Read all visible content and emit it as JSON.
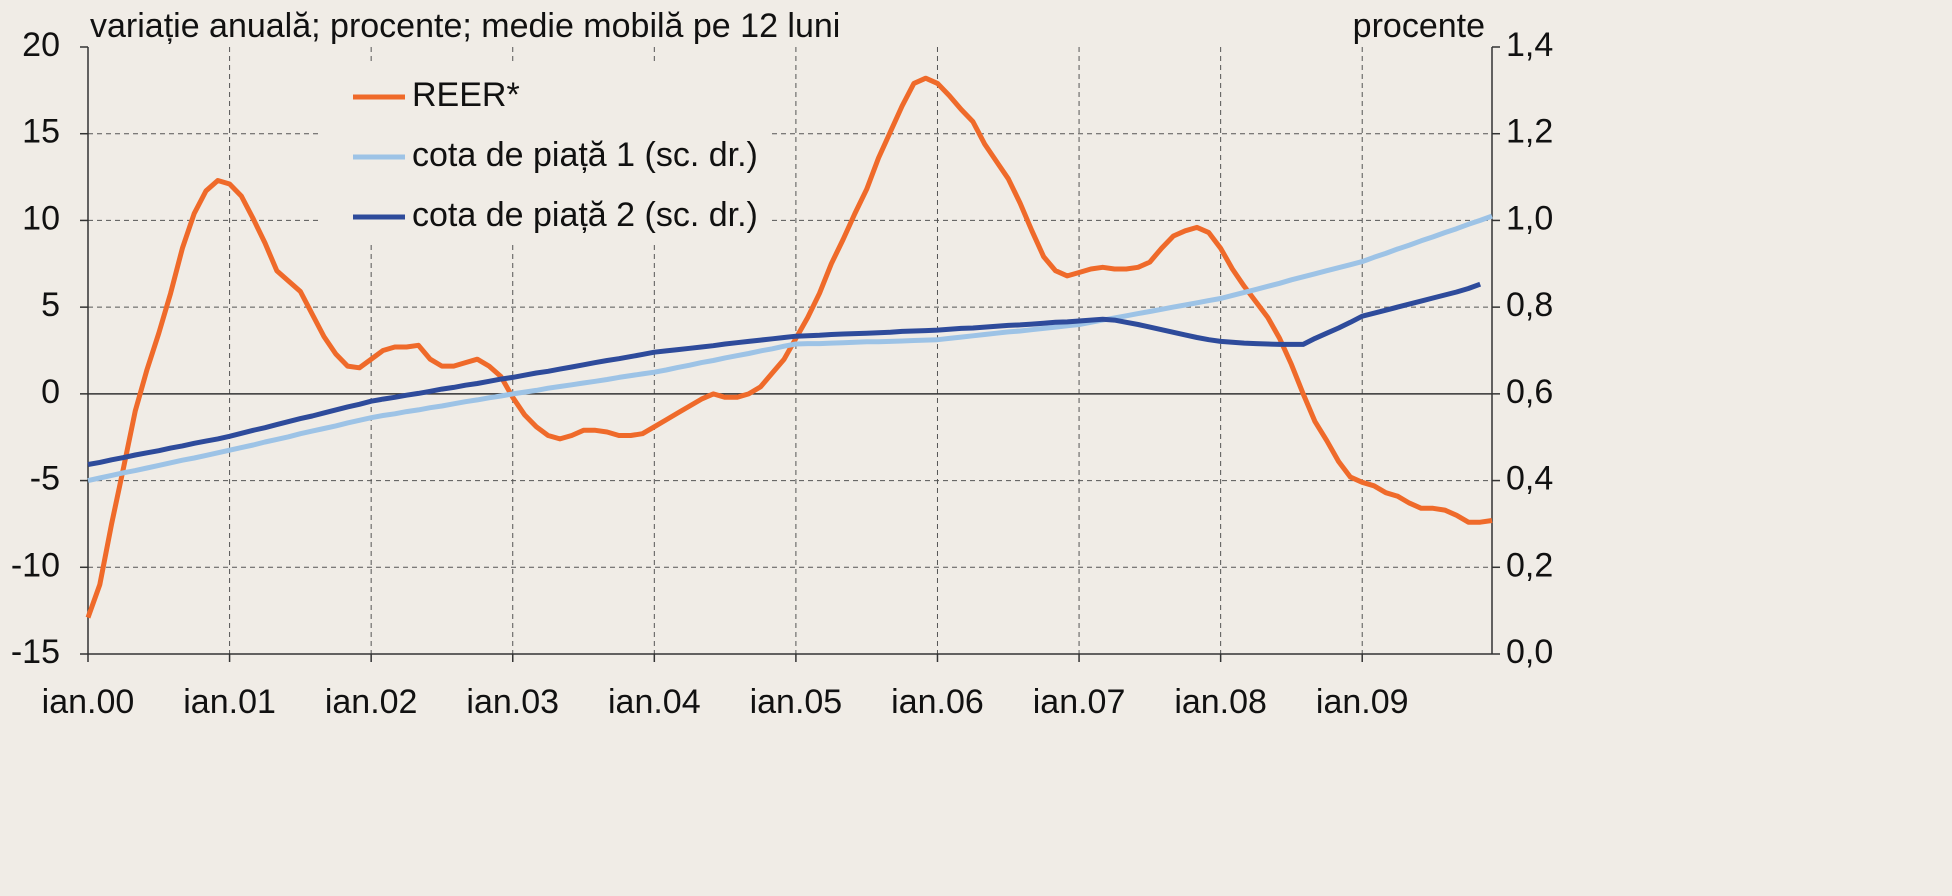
{
  "chart_data": {
    "type": "line",
    "y_label": "variație anuală; procente; medie mobilă pe 12 luni",
    "y2_label": "procente",
    "categories": [
      "ian.00",
      null,
      null,
      null,
      null,
      null,
      null,
      null,
      null,
      null,
      null,
      null,
      "ian.01",
      null,
      null,
      null,
      null,
      null,
      null,
      null,
      null,
      null,
      null,
      null,
      "ian.02",
      null,
      null,
      null,
      null,
      null,
      null,
      null,
      null,
      null,
      null,
      null,
      "ian.03",
      null,
      null,
      null,
      null,
      null,
      null,
      null,
      null,
      null,
      null,
      null,
      "ian.04",
      null,
      null,
      null,
      null,
      null,
      null,
      null,
      null,
      null,
      null,
      null,
      "ian.05",
      null,
      null,
      null,
      null,
      null,
      null,
      null,
      null,
      null,
      null,
      null,
      "ian.06",
      null,
      null,
      null,
      null,
      null,
      null,
      null,
      null,
      null,
      null,
      null,
      "ian.07",
      null,
      null,
      null,
      null,
      null,
      null,
      null,
      null,
      null,
      null,
      null,
      "ian.08",
      null,
      null,
      null,
      null,
      null,
      null,
      null,
      null,
      null,
      null,
      null,
      "ian.09",
      null,
      null,
      null,
      null,
      null,
      null,
      null,
      null,
      null,
      null,
      null
    ],
    "ylim": [
      -15,
      20
    ],
    "yticks": [
      -15,
      -10,
      -5,
      0,
      5,
      10,
      15,
      20
    ],
    "y2lim": [
      0,
      1.4
    ],
    "y2ticks": [
      {
        "value": 0,
        "label": "0,0"
      },
      {
        "value": 0.2,
        "label": "0,2"
      },
      {
        "value": 0.4,
        "label": "0,4"
      },
      {
        "value": 0.6,
        "label": "0,6"
      },
      {
        "value": 0.8,
        "label": "0,8"
      },
      {
        "value": 1.0,
        "label": "1,0"
      },
      {
        "value": 1.2,
        "label": "1,2"
      },
      {
        "value": 1.4,
        "label": "1,4"
      }
    ],
    "grid": true,
    "legend": "upper left",
    "series": [
      {
        "name": "REER*",
        "color": "#ef6a2a",
        "values": [
          -12.9,
          -11.0,
          -7.5,
          -4.3,
          -1.0,
          1.4,
          3.5,
          5.8,
          8.4,
          10.4,
          11.7,
          12.3,
          12.1,
          11.4,
          10.1,
          8.7,
          7.1,
          6.5,
          5.9,
          4.6,
          3.3,
          2.3,
          1.6,
          1.5,
          2.0,
          2.5,
          2.7,
          2.7,
          2.8,
          2.0,
          1.6,
          1.6,
          1.8,
          2.0,
          1.6,
          1.0,
          -0.2,
          -1.2,
          -1.9,
          -2.4,
          -2.6,
          -2.4,
          -2.1,
          -2.1,
          -2.2,
          -2.4,
          -2.4,
          -2.3,
          -1.9,
          -1.5,
          -1.1,
          -0.7,
          -0.3,
          0.0,
          -0.2,
          -0.2,
          0.0,
          0.4,
          1.2,
          2.0,
          3.2,
          4.4,
          5.8,
          7.5,
          8.9,
          10.4,
          11.8,
          13.6,
          15.1,
          16.6,
          17.9,
          18.2,
          17.9,
          17.2,
          16.4,
          15.7,
          14.4,
          13.4,
          12.4,
          11.0,
          9.4,
          7.9,
          7.1,
          6.8,
          7.0,
          7.2,
          7.3,
          7.2,
          7.2,
          7.3,
          7.6,
          8.4,
          9.1,
          9.4,
          9.6,
          9.3,
          8.4,
          7.2,
          6.2,
          5.3,
          4.4,
          3.2,
          1.7,
          0.0,
          -1.6,
          -2.7,
          -3.9,
          -4.8,
          -5.1,
          -5.3,
          -5.7,
          -5.9,
          -6.3,
          -6.6,
          -6.6,
          -6.7,
          -7.0,
          -7.4,
          -7.4,
          -7.3
        ]
      },
      {
        "name": "cota de piață 1 (sc. dr.)",
        "color": "#9dc3e6",
        "axis": "y2",
        "values": [
          0.4,
          0.406,
          0.412,
          0.418,
          0.423,
          0.429,
          0.435,
          0.441,
          0.447,
          0.452,
          0.458,
          0.464,
          0.47,
          0.476,
          0.482,
          0.489,
          0.495,
          0.501,
          0.508,
          0.514,
          0.52,
          0.526,
          0.533,
          0.539,
          0.545,
          0.55,
          0.554,
          0.559,
          0.563,
          0.568,
          0.572,
          0.577,
          0.582,
          0.586,
          0.591,
          0.595,
          0.6,
          0.604,
          0.608,
          0.613,
          0.617,
          0.621,
          0.625,
          0.629,
          0.633,
          0.638,
          0.642,
          0.646,
          0.65,
          0.655,
          0.661,
          0.666,
          0.672,
          0.677,
          0.683,
          0.688,
          0.693,
          0.699,
          0.704,
          0.71,
          0.715,
          0.716,
          0.716,
          0.717,
          0.718,
          0.719,
          0.72,
          0.72,
          0.721,
          0.722,
          0.723,
          0.724,
          0.725,
          0.728,
          0.731,
          0.734,
          0.737,
          0.74,
          0.743,
          0.745,
          0.748,
          0.751,
          0.754,
          0.757,
          0.76,
          0.765,
          0.77,
          0.775,
          0.78,
          0.785,
          0.79,
          0.795,
          0.8,
          0.805,
          0.81,
          0.815,
          0.82,
          0.827,
          0.834,
          0.841,
          0.848,
          0.855,
          0.863,
          0.87,
          0.877,
          0.884,
          0.891,
          0.898,
          0.905,
          0.915,
          0.924,
          0.934,
          0.943,
          0.953,
          0.962,
          0.972,
          0.981,
          0.991,
          1.0,
          1.01
        ]
      },
      {
        "name": "cota de piață 2 (sc. dr.)",
        "color": "#2e4b9b",
        "axis": "y2",
        "values": [
          0.437,
          0.442,
          0.448,
          0.453,
          0.459,
          0.464,
          0.469,
          0.475,
          0.48,
          0.486,
          0.491,
          0.496,
          0.502,
          0.509,
          0.516,
          0.522,
          0.529,
          0.536,
          0.543,
          0.549,
          0.556,
          0.563,
          0.57,
          0.576,
          0.583,
          0.588,
          0.592,
          0.597,
          0.601,
          0.606,
          0.611,
          0.615,
          0.62,
          0.624,
          0.629,
          0.634,
          0.638,
          0.643,
          0.648,
          0.652,
          0.657,
          0.662,
          0.667,
          0.672,
          0.677,
          0.681,
          0.686,
          0.691,
          0.696,
          0.699,
          0.702,
          0.705,
          0.708,
          0.711,
          0.715,
          0.718,
          0.721,
          0.724,
          0.727,
          0.73,
          0.733,
          0.734,
          0.735,
          0.737,
          0.738,
          0.739,
          0.74,
          0.741,
          0.742,
          0.744,
          0.745,
          0.746,
          0.747,
          0.749,
          0.751,
          0.752,
          0.754,
          0.756,
          0.758,
          0.759,
          0.761,
          0.763,
          0.765,
          0.766,
          0.768,
          0.77,
          0.772,
          0.77,
          0.765,
          0.76,
          0.754,
          0.748,
          0.742,
          0.736,
          0.73,
          0.725,
          0.721,
          0.719,
          0.717,
          0.716,
          0.715,
          0.714,
          0.714,
          0.714,
          0.728,
          0.74,
          0.752,
          0.765,
          0.779,
          0.786,
          0.793,
          0.8,
          0.807,
          0.814,
          0.821,
          0.828,
          0.835,
          0.843,
          0.853,
          null
        ]
      }
    ]
  }
}
